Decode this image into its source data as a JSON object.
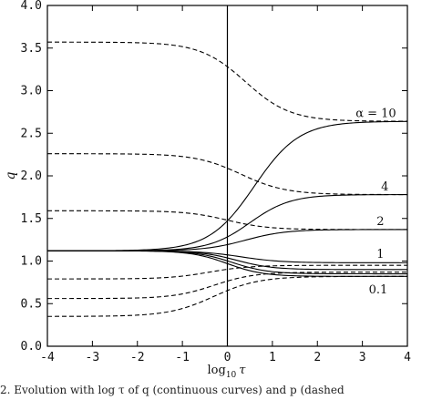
{
  "chart_data": {
    "type": "line",
    "xlabel_main": "log",
    "xlabel_sub": "10",
    "xlabel_var": "τ",
    "ylabel": "q",
    "xlim": [
      -4,
      4
    ],
    "ylim": [
      0.0,
      4.0
    ],
    "x_ticks": [
      "-4",
      "-3",
      "-2",
      "-1",
      "0",
      "1",
      "2",
      "3",
      "4"
    ],
    "y_ticks": [
      "0.0",
      "0.5",
      "1.0",
      "1.5",
      "2.0",
      "2.5",
      "3.0",
      "3.5",
      "4.0"
    ],
    "grid": false,
    "vertical_line_x": 0,
    "series": [
      {
        "style": "solid",
        "start": 1.12,
        "end": 2.64,
        "center": 0.6,
        "width": 0.5
      },
      {
        "style": "solid",
        "start": 1.12,
        "end": 1.78,
        "center": 0.5,
        "width": 0.45
      },
      {
        "style": "solid",
        "start": 1.12,
        "end": 1.37,
        "center": 0.4,
        "width": 0.45
      },
      {
        "style": "solid",
        "start": 1.12,
        "end": 0.98,
        "center": 0.3,
        "width": 0.45
      },
      {
        "style": "solid",
        "start": 1.12,
        "end": 0.9,
        "center": 0.2,
        "width": 0.4
      },
      {
        "style": "solid",
        "start": 1.12,
        "end": 0.85,
        "center": 0.1,
        "width": 0.4
      },
      {
        "style": "solid",
        "start": 1.12,
        "end": 0.82,
        "center": 0.0,
        "width": 0.4
      },
      {
        "style": "dashed",
        "start": 3.57,
        "end": 2.64,
        "center": 0.4,
        "width": 0.5
      },
      {
        "style": "dashed",
        "start": 2.26,
        "end": 1.78,
        "center": 0.3,
        "width": 0.5
      },
      {
        "style": "dashed",
        "start": 1.59,
        "end": 1.37,
        "center": 0.0,
        "width": 0.45
      },
      {
        "style": "dashed",
        "start": 0.79,
        "end": 0.95,
        "center": -0.4,
        "width": 0.45
      },
      {
        "style": "dashed",
        "start": 0.56,
        "end": 0.87,
        "center": -0.3,
        "width": 0.45
      },
      {
        "style": "dashed",
        "start": 0.35,
        "end": 0.82,
        "center": -0.3,
        "width": 0.5
      }
    ],
    "annotations": [
      {
        "text": "α = 10",
        "x": 3.3,
        "y": 2.69
      },
      {
        "text": "4",
        "x": 3.5,
        "y": 1.83
      },
      {
        "text": "2",
        "x": 3.4,
        "y": 1.42
      },
      {
        "text": "1",
        "x": 3.4,
        "y": 1.04
      },
      {
        "text": "0.1",
        "x": 3.35,
        "y": 0.62
      }
    ]
  },
  "caption": "2. Evolution with log τ of q (continuous curves) and p (dashed"
}
